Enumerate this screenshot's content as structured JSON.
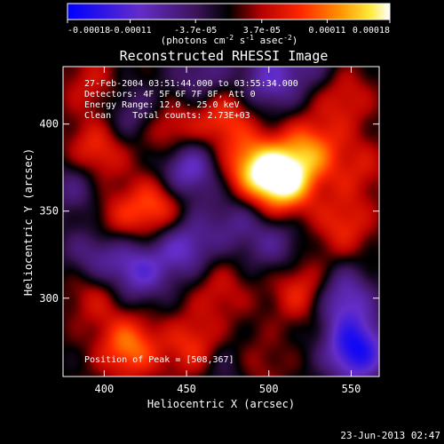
{
  "chart_data": {
    "type": "heatmap",
    "title": "Reconstructed RHESSI Image",
    "xlabel": "Heliocentric X (arcsec)",
    "ylabel": "Heliocentric Y (arcsec)",
    "xlim": [
      375,
      567
    ],
    "ylim": [
      255,
      433
    ],
    "x_ticks": [
      400,
      450,
      500,
      550
    ],
    "y_ticks": [
      300,
      350,
      400
    ],
    "colorbar": {
      "ticks": [
        "-0.00018",
        "-0.00011",
        "-3.7e-05",
        "3.7e-05",
        "0.00011",
        "0.00018"
      ],
      "tick_values": [
        -0.00018,
        -0.00011,
        -3.7e-05,
        3.7e-05,
        0.00011,
        0.00018
      ],
      "range": [
        -0.00018,
        0.00018
      ],
      "label_parts": [
        "(photons cm",
        "-2",
        " s",
        "-1",
        " asec",
        "-2",
        ")"
      ],
      "colormap": "blue-purple-black-red-orange-yellow-white"
    },
    "annotations": [
      "27-Feb-2004 03:51:44.000 to 03:55:34.000",
      "Detectors: 4F 5F 6F 7F 8F, Att 0",
      "Energy Range: 12.0 - 25.0 keV",
      "Clean    Total counts: 2.73E+03"
    ],
    "peak_label": "Position of Peak = [508,367]",
    "peak": [
      508,
      367
    ],
    "hotspots": [
      {
        "x": 508,
        "y": 367,
        "value": 0.00018
      },
      {
        "x": 490,
        "y": 375,
        "value": 0.00012
      },
      {
        "x": 525,
        "y": 385,
        "value": 0.0001
      },
      {
        "x": 472,
        "y": 405,
        "value": 9e-05
      },
      {
        "x": 440,
        "y": 395,
        "value": 8e-05
      },
      {
        "x": 395,
        "y": 383,
        "value": 9e-05
      },
      {
        "x": 392,
        "y": 423,
        "value": 5e-05
      },
      {
        "x": 432,
        "y": 352,
        "value": 0.0001
      },
      {
        "x": 405,
        "y": 345,
        "value": 6e-05
      },
      {
        "x": 545,
        "y": 342,
        "value": 7e-05
      },
      {
        "x": 520,
        "y": 305,
        "value": 8e-05
      },
      {
        "x": 470,
        "y": 305,
        "value": 5e-05
      },
      {
        "x": 395,
        "y": 303,
        "value": 6e-05
      },
      {
        "x": 415,
        "y": 272,
        "value": 0.00011
      },
      {
        "x": 455,
        "y": 272,
        "value": 8e-05
      },
      {
        "x": 490,
        "y": 262,
        "value": 5e-05
      },
      {
        "x": 545,
        "y": 415,
        "value": 6e-05
      },
      {
        "x": 555,
        "y": 375,
        "value": 5e-05
      },
      {
        "x": 450,
        "y": 375,
        "value": -0.00012
      },
      {
        "x": 420,
        "y": 315,
        "value": -0.0001
      },
      {
        "x": 448,
        "y": 330,
        "value": -0.0001
      },
      {
        "x": 500,
        "y": 425,
        "value": -9e-05
      },
      {
        "x": 460,
        "y": 425,
        "value": -7e-05
      },
      {
        "x": 553,
        "y": 270,
        "value": -0.00016
      },
      {
        "x": 545,
        "y": 300,
        "value": -0.0001
      },
      {
        "x": 395,
        "y": 325,
        "value": -8e-05
      },
      {
        "x": 418,
        "y": 405,
        "value": -6e-05
      },
      {
        "x": 385,
        "y": 365,
        "value": -7e-05
      },
      {
        "x": 505,
        "y": 330,
        "value": -6e-05
      },
      {
        "x": 480,
        "y": 345,
        "value": -6e-05
      },
      {
        "x": 475,
        "y": 262,
        "value": -6e-05
      },
      {
        "x": 525,
        "y": 435,
        "value": -5e-05
      }
    ]
  },
  "timestamp": "23-Jun-2013 02:47",
  "colors": {
    "background": "#000000",
    "text": "#ffffff"
  }
}
